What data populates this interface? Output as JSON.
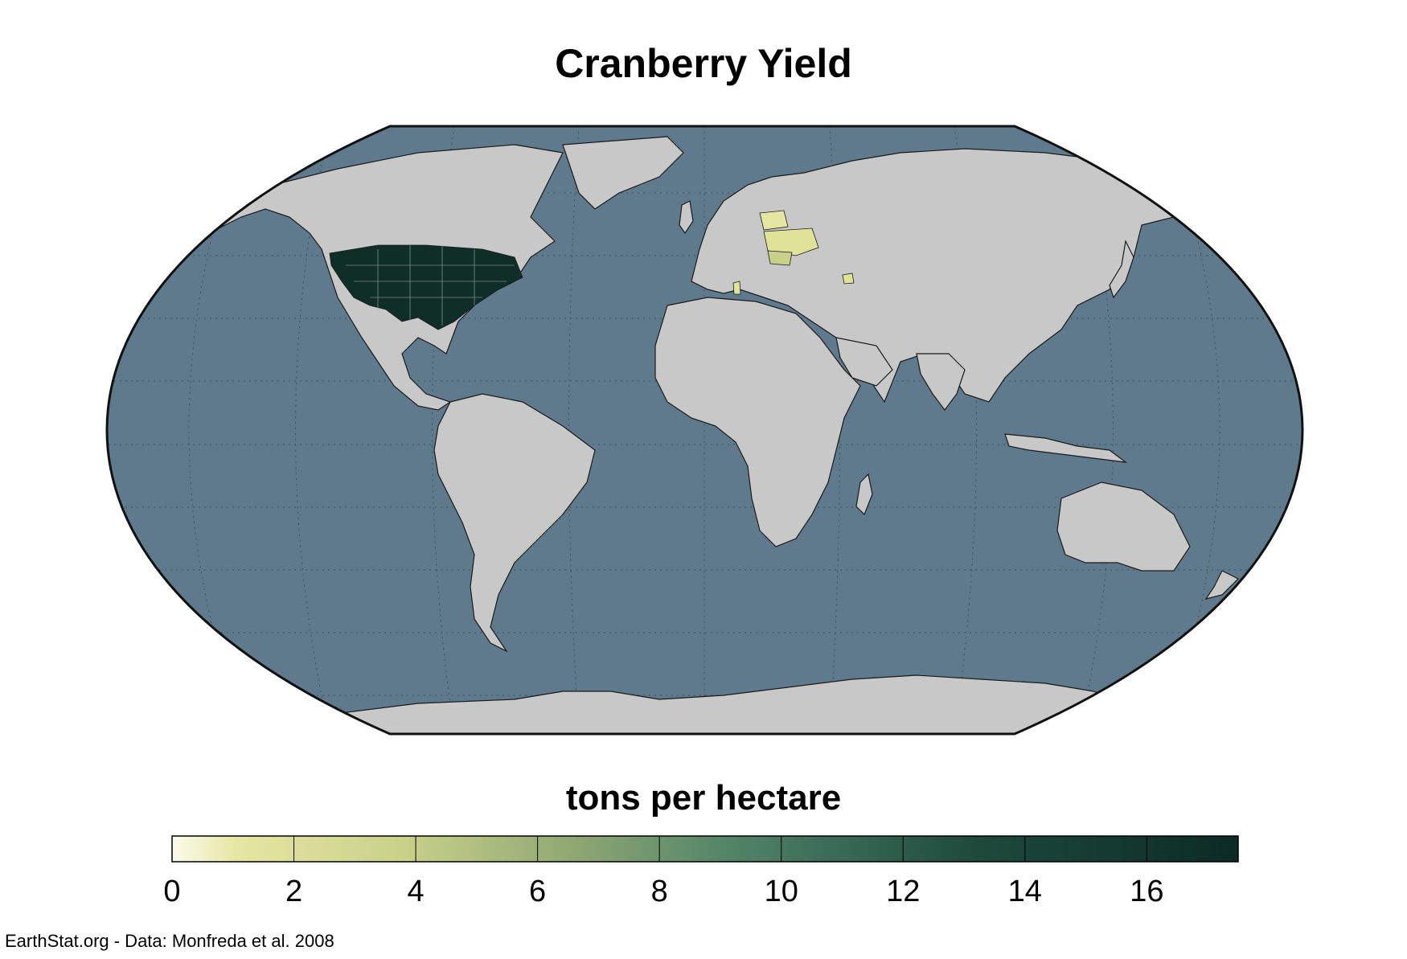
{
  "title": "Cranberry Yield",
  "legend": {
    "title": "tons per hectare",
    "ticks": [
      "0",
      "2",
      "4",
      "6",
      "8",
      "10",
      "12",
      "14",
      "16"
    ],
    "range": [
      0,
      17.5
    ],
    "colors": [
      "#fbfbee",
      "#e6e6a3",
      "#c8d08a",
      "#8ea772",
      "#5a8a6a",
      "#3b6b58",
      "#1f4a3c",
      "#143a30",
      "#0d2a26"
    ]
  },
  "credit": "EarthStat.org - Data: Monfreda et al. 2008",
  "colors": {
    "ocean": "#5f7a8c",
    "land": "#c8c8c8",
    "border": "#1a1a1a",
    "high_yield": "#0f2e28",
    "low_yield": "#dfe39a"
  },
  "regions": [
    {
      "name": "United States",
      "value": 17
    },
    {
      "name": "Belarus",
      "value": 1
    },
    {
      "name": "Ukraine",
      "value": 1
    },
    {
      "name": "Romania",
      "value": 1.5
    },
    {
      "name": "Azerbaijan",
      "value": 1
    },
    {
      "name": "Tunisia",
      "value": 1
    }
  ]
}
